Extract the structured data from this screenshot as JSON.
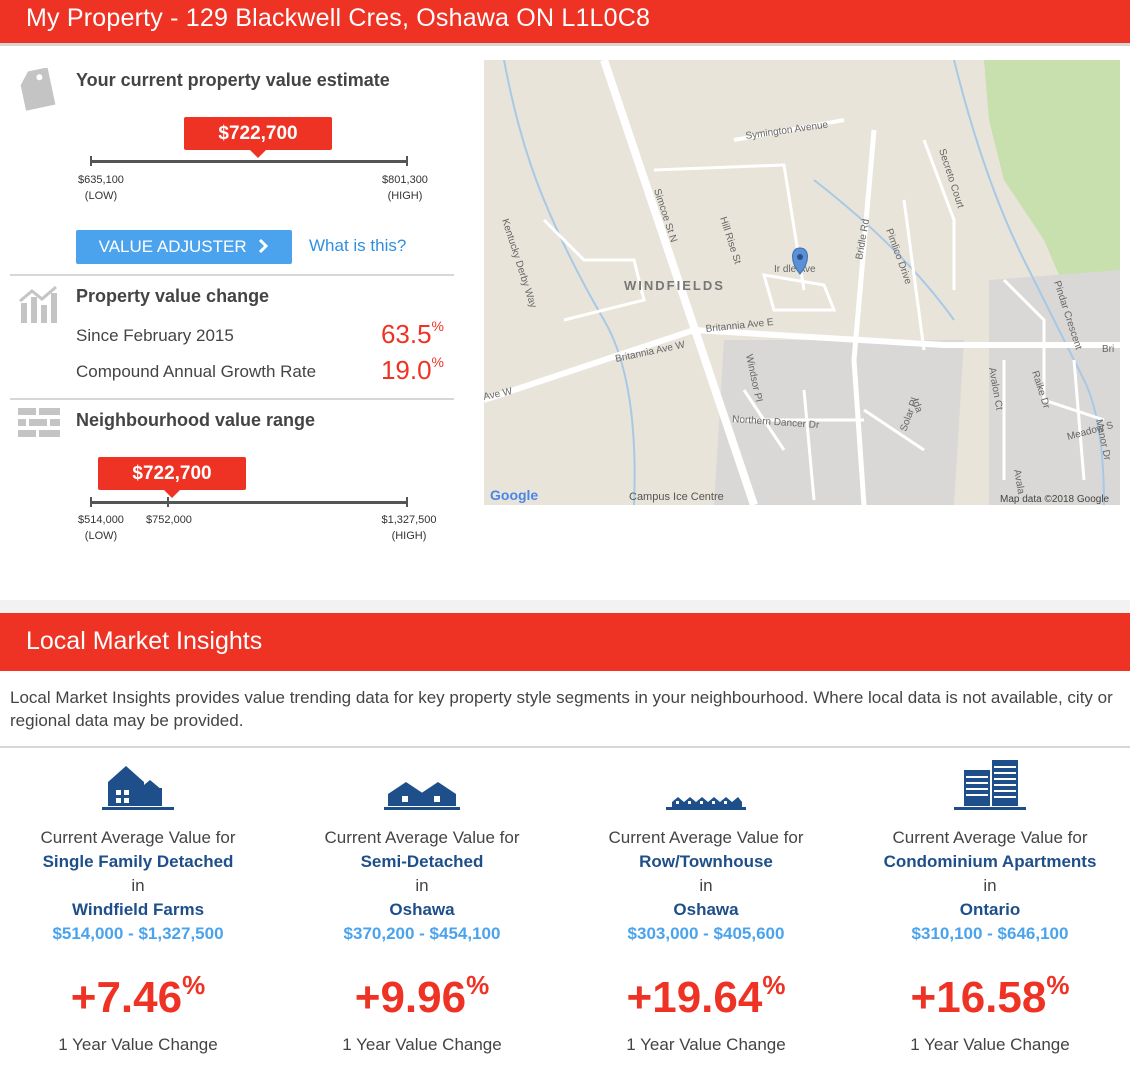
{
  "header": {
    "title": "My Property - 129 Blackwell Cres, Oshawa ON L1L0C8"
  },
  "estimate": {
    "title": "Your current property value estimate",
    "value": "$722,700",
    "low": "$635,100",
    "low_tag": "(LOW)",
    "high": "$801,300",
    "high_tag": "(HIGH)",
    "adjuster_label": "VALUE ADJUSTER",
    "what_is_this": "What is this?"
  },
  "change": {
    "title": "Property value change",
    "rows": [
      {
        "label": "Since February 2015",
        "value": "63.5",
        "unit": "%"
      },
      {
        "label": "Compound Annual Growth Rate",
        "value": "19.0",
        "unit": "%"
      }
    ]
  },
  "neighbourhood": {
    "title": "Neighbourhood value range",
    "value": "$722,700",
    "low": "$514,000",
    "low_tag": "(LOW)",
    "mid": "$752,000",
    "high": "$1,327,500",
    "high_tag": "(HIGH)"
  },
  "map": {
    "area_label": "WINDFIELDS",
    "streets": [
      "Symington Avenue",
      "Secreto Court",
      "Kentucky Derby Way",
      "Simcoe St N",
      "Hill Rise St",
      "Bridle Rd",
      "Pimlico Drive",
      "Britannia Ave E",
      "Britannia Ave W",
      "Ave W",
      "Windsor Pl",
      "Northern Dancer Dr",
      "Solar Pl",
      "Pindar Crescent",
      "Raike Dr",
      "Avalon Ct",
      "Meadow S",
      "Manor Dr",
      "Campus Ice Centre",
      "Bri",
      "Ida",
      "Avala"
    ],
    "pin_label": "Ir  dle Ave",
    "google": "Google",
    "attribution": "Map data ©2018 Google"
  },
  "insights": {
    "title": "Local Market Insights",
    "description": "Local Market Insights provides value trending data for key property style segments in your neighbourhood. Where local data is not available, city or regional data may be provided.",
    "columns": [
      {
        "icon": "detached-house-icon",
        "prefix": "Current Average Value for",
        "type": "Single Family Detached",
        "in": "in",
        "place": "Windfield Farms",
        "range": "$514,000 - $1,327,500",
        "change": "+7.46",
        "unit": "%",
        "foot": "1 Year Value Change"
      },
      {
        "icon": "semi-detached-icon",
        "prefix": "Current Average Value for",
        "type": "Semi-Detached",
        "in": "in",
        "place": "Oshawa",
        "range": "$370,200 - $454,100",
        "change": "+9.96",
        "unit": "%",
        "foot": "1 Year Value Change"
      },
      {
        "icon": "townhouse-icon",
        "prefix": "Current Average Value for",
        "type": "Row/Townhouse",
        "in": "in",
        "place": "Oshawa",
        "range": "$303,000 - $405,600",
        "change": "+19.64",
        "unit": "%",
        "foot": "1 Year Value Change"
      },
      {
        "icon": "condo-icon",
        "prefix": "Current Average Value for",
        "type": "Condominium Apartments",
        "in": "in",
        "place": "Ontario",
        "range": "$310,100 - $646,100",
        "change": "+16.58",
        "unit": "%",
        "foot": "1 Year Value Change"
      }
    ]
  },
  "colors": {
    "accent": "#ee3325",
    "link": "#4aa3ec",
    "navy": "#1f4f8a"
  }
}
